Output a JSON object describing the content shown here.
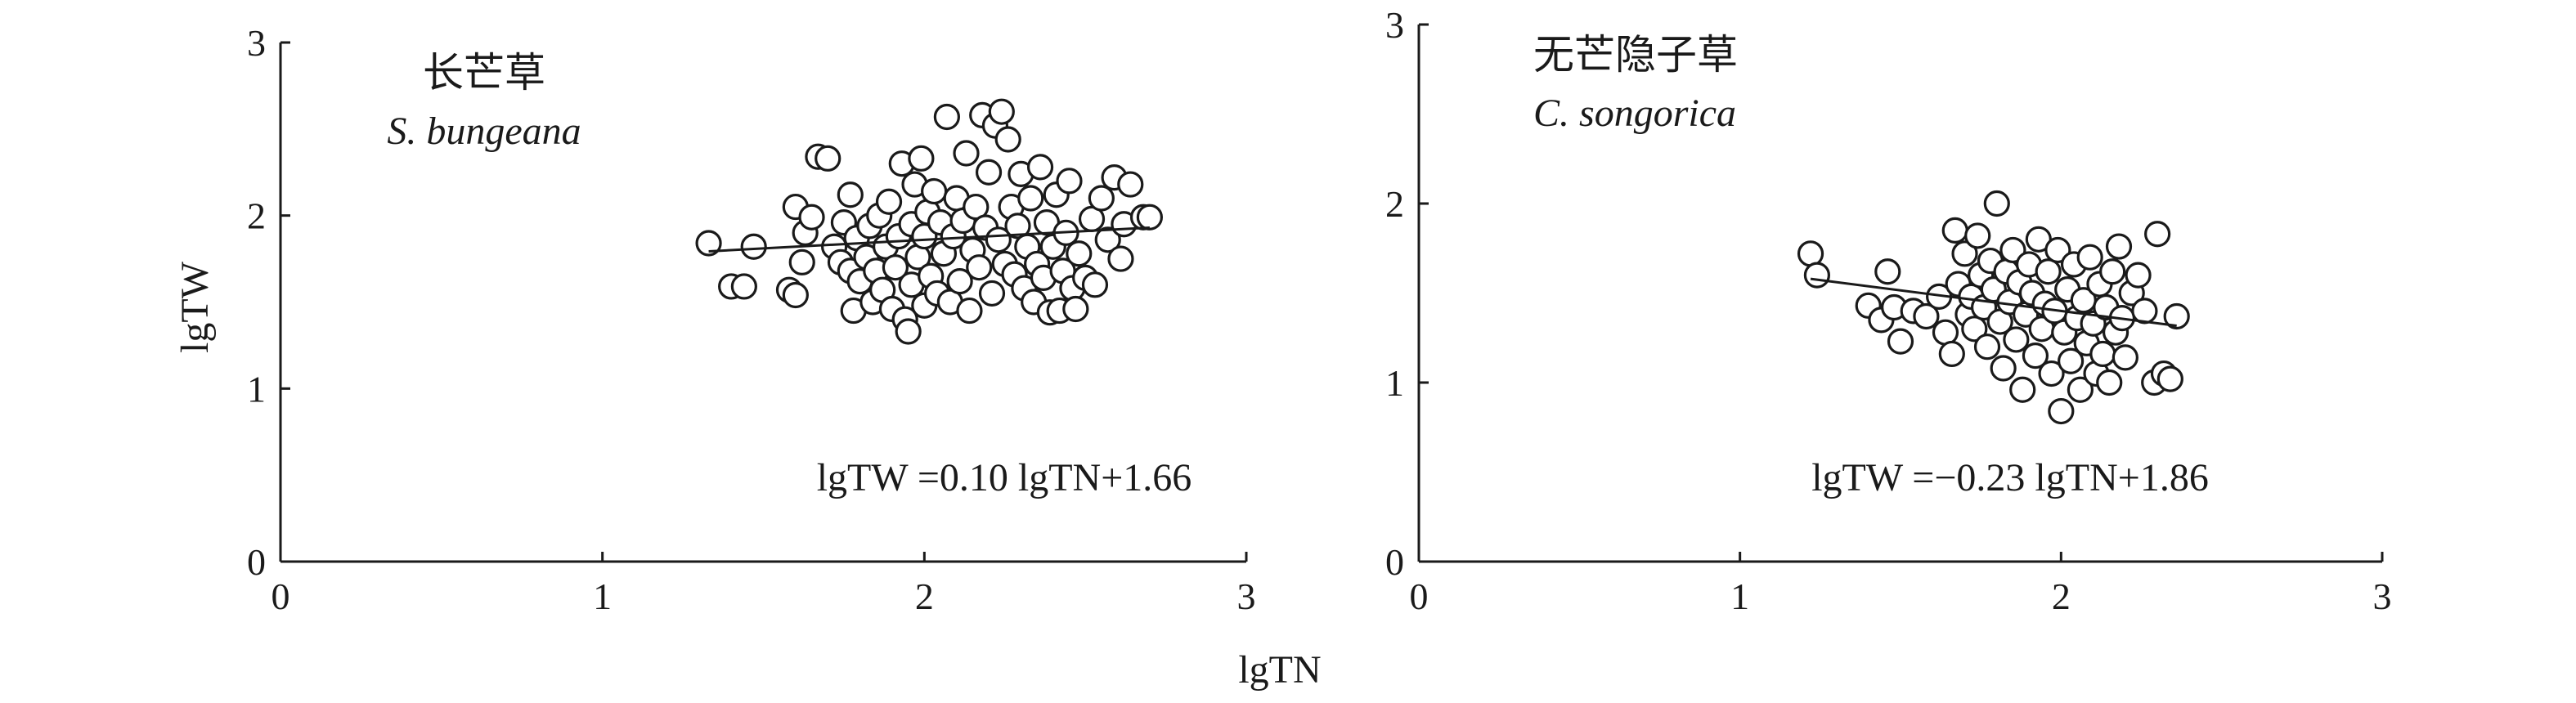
{
  "figure": {
    "shared_xlabel": "lgTN",
    "shared_ylabel": "lgTW"
  },
  "chart_data": [
    {
      "type": "scatter",
      "panel_cn": "长芒草",
      "panel_latin": "S. bungeana",
      "equation": "lgTW =0.10 lgTN+1.66",
      "xlabel": "lgTN",
      "ylabel": "lgTW",
      "xlim": [
        0,
        3
      ],
      "ylim": [
        0,
        3
      ],
      "xticks": [
        "0",
        "1",
        "2",
        "3"
      ],
      "yticks": [
        "0",
        "1",
        "2",
        "3"
      ],
      "grid": false,
      "fit": {
        "slope": 0.1,
        "intercept": 1.66,
        "x_range": [
          1.33,
          2.7
        ]
      },
      "points": [
        [
          1.33,
          1.84
        ],
        [
          1.4,
          1.59
        ],
        [
          1.44,
          1.59
        ],
        [
          1.47,
          1.82
        ],
        [
          1.58,
          1.57
        ],
        [
          1.6,
          1.54
        ],
        [
          1.6,
          2.05
        ],
        [
          1.62,
          1.73
        ],
        [
          1.63,
          1.9
        ],
        [
          1.65,
          1.99
        ],
        [
          1.67,
          2.34
        ],
        [
          1.7,
          2.33
        ],
        [
          1.72,
          1.82
        ],
        [
          1.74,
          1.73
        ],
        [
          1.75,
          1.96
        ],
        [
          1.77,
          1.68
        ],
        [
          1.77,
          2.12
        ],
        [
          1.78,
          1.45
        ],
        [
          1.79,
          1.87
        ],
        [
          1.8,
          1.62
        ],
        [
          1.82,
          1.76
        ],
        [
          1.83,
          1.94
        ],
        [
          1.84,
          1.5
        ],
        [
          1.85,
          1.68
        ],
        [
          1.86,
          2.0
        ],
        [
          1.87,
          1.57
        ],
        [
          1.88,
          1.82
        ],
        [
          1.89,
          2.08
        ],
        [
          1.9,
          1.46
        ],
        [
          1.91,
          1.7
        ],
        [
          1.92,
          1.88
        ],
        [
          1.93,
          2.3
        ],
        [
          1.94,
          1.4
        ],
        [
          1.95,
          1.33
        ],
        [
          1.96,
          1.6
        ],
        [
          1.96,
          1.95
        ],
        [
          1.97,
          2.18
        ],
        [
          1.98,
          1.76
        ],
        [
          1.99,
          2.33
        ],
        [
          2.0,
          1.48
        ],
        [
          2.0,
          1.88
        ],
        [
          2.01,
          2.02
        ],
        [
          2.02,
          1.65
        ],
        [
          2.03,
          2.14
        ],
        [
          2.04,
          1.55
        ],
        [
          2.05,
          1.96
        ],
        [
          2.06,
          1.78
        ],
        [
          2.07,
          2.57
        ],
        [
          2.08,
          1.5
        ],
        [
          2.09,
          1.88
        ],
        [
          2.1,
          2.1
        ],
        [
          2.11,
          1.62
        ],
        [
          2.12,
          1.97
        ],
        [
          2.13,
          2.36
        ],
        [
          2.14,
          1.45
        ],
        [
          2.15,
          1.8
        ],
        [
          2.16,
          2.05
        ],
        [
          2.17,
          1.7
        ],
        [
          2.18,
          2.58
        ],
        [
          2.19,
          1.93
        ],
        [
          2.2,
          2.25
        ],
        [
          2.21,
          1.55
        ],
        [
          2.22,
          2.52
        ],
        [
          2.23,
          1.86
        ],
        [
          2.24,
          2.6
        ],
        [
          2.25,
          1.72
        ],
        [
          2.26,
          2.44
        ],
        [
          2.27,
          2.05
        ],
        [
          2.28,
          1.66
        ],
        [
          2.29,
          1.94
        ],
        [
          2.3,
          2.24
        ],
        [
          2.31,
          1.58
        ],
        [
          2.32,
          1.82
        ],
        [
          2.33,
          2.1
        ],
        [
          2.34,
          1.5
        ],
        [
          2.35,
          1.72
        ],
        [
          2.36,
          2.28
        ],
        [
          2.37,
          1.64
        ],
        [
          2.38,
          1.96
        ],
        [
          2.39,
          1.44
        ],
        [
          2.4,
          1.82
        ],
        [
          2.41,
          2.12
        ],
        [
          2.42,
          1.45
        ],
        [
          2.43,
          1.68
        ],
        [
          2.44,
          1.9
        ],
        [
          2.45,
          2.2
        ],
        [
          2.46,
          1.58
        ],
        [
          2.47,
          1.46
        ],
        [
          2.48,
          1.78
        ],
        [
          2.5,
          1.64
        ],
        [
          2.52,
          1.98
        ],
        [
          2.53,
          1.6
        ],
        [
          2.55,
          2.1
        ],
        [
          2.57,
          1.86
        ],
        [
          2.59,
          2.22
        ],
        [
          2.61,
          1.75
        ],
        [
          2.62,
          1.95
        ],
        [
          2.64,
          2.18
        ],
        [
          2.68,
          1.99
        ],
        [
          2.7,
          1.99
        ]
      ]
    },
    {
      "type": "scatter",
      "panel_cn": "无芒隐子草",
      "panel_latin": "C. songorica",
      "equation": "lgTW =−0.23 lgTN+1.86",
      "xlabel": "lgTN",
      "ylabel": "lgTW",
      "xlim": [
        0,
        3
      ],
      "ylim": [
        0,
        3
      ],
      "xticks": [
        "0",
        "1",
        "2",
        "3"
      ],
      "yticks": [
        "0",
        "1",
        "2",
        "3"
      ],
      "grid": false,
      "fit": {
        "slope": -0.23,
        "intercept": 1.86,
        "x_range": [
          1.22,
          2.36
        ]
      },
      "points": [
        [
          1.22,
          1.72
        ],
        [
          1.24,
          1.6
        ],
        [
          1.4,
          1.43
        ],
        [
          1.44,
          1.35
        ],
        [
          1.46,
          1.62
        ],
        [
          1.48,
          1.42
        ],
        [
          1.5,
          1.23
        ],
        [
          1.54,
          1.4
        ],
        [
          1.58,
          1.37
        ],
        [
          1.62,
          1.48
        ],
        [
          1.64,
          1.28
        ],
        [
          1.66,
          1.16
        ],
        [
          1.67,
          1.85
        ],
        [
          1.68,
          1.55
        ],
        [
          1.7,
          1.72
        ],
        [
          1.71,
          1.38
        ],
        [
          1.72,
          1.48
        ],
        [
          1.73,
          1.3
        ],
        [
          1.74,
          1.82
        ],
        [
          1.75,
          1.6
        ],
        [
          1.76,
          1.42
        ],
        [
          1.77,
          1.2
        ],
        [
          1.78,
          1.68
        ],
        [
          1.79,
          1.52
        ],
        [
          1.8,
          2.0
        ],
        [
          1.81,
          1.34
        ],
        [
          1.82,
          1.08
        ],
        [
          1.83,
          1.62
        ],
        [
          1.84,
          1.45
        ],
        [
          1.85,
          1.74
        ],
        [
          1.86,
          1.24
        ],
        [
          1.87,
          1.56
        ],
        [
          1.88,
          0.96
        ],
        [
          1.89,
          1.38
        ],
        [
          1.9,
          1.66
        ],
        [
          1.91,
          1.5
        ],
        [
          1.92,
          1.15
        ],
        [
          1.93,
          1.8
        ],
        [
          1.94,
          1.3
        ],
        [
          1.95,
          1.44
        ],
        [
          1.96,
          1.62
        ],
        [
          1.97,
          1.05
        ],
        [
          1.98,
          1.4
        ],
        [
          1.99,
          1.74
        ],
        [
          2.0,
          0.84
        ],
        [
          2.01,
          1.28
        ],
        [
          2.02,
          1.52
        ],
        [
          2.03,
          1.12
        ],
        [
          2.04,
          1.66
        ],
        [
          2.05,
          1.36
        ],
        [
          2.06,
          0.96
        ],
        [
          2.07,
          1.46
        ],
        [
          2.08,
          1.22
        ],
        [
          2.09,
          1.7
        ],
        [
          2.1,
          1.33
        ],
        [
          2.11,
          1.05
        ],
        [
          2.12,
          1.55
        ],
        [
          2.13,
          1.16
        ],
        [
          2.14,
          1.42
        ],
        [
          2.15,
          1.0
        ],
        [
          2.16,
          1.62
        ],
        [
          2.17,
          1.28
        ],
        [
          2.18,
          1.76
        ],
        [
          2.19,
          1.36
        ],
        [
          2.2,
          1.14
        ],
        [
          2.22,
          1.5
        ],
        [
          2.24,
          1.6
        ],
        [
          2.26,
          1.4
        ],
        [
          2.29,
          1.0
        ],
        [
          2.3,
          1.83
        ],
        [
          2.32,
          1.05
        ],
        [
          2.34,
          1.02
        ],
        [
          2.36,
          1.37
        ]
      ]
    }
  ]
}
